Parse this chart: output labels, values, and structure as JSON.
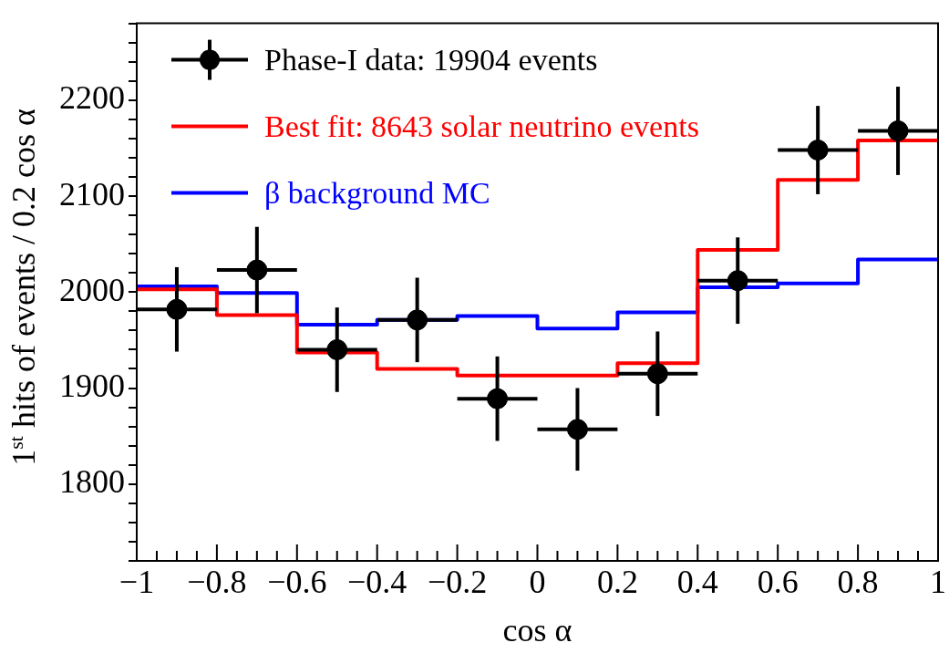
{
  "chart_data": {
    "type": "scatter",
    "xlabel": "cos α",
    "ylabel": "1$^{st}$ hits of events / 0.2 cos α",
    "bins": [
      -1,
      -0.8,
      -0.6,
      -0.4,
      -0.2,
      0,
      0.2,
      0.4,
      0.6,
      0.8,
      1
    ],
    "series": [
      {
        "name": "Phase-I data: 19904 events",
        "type": "scatter",
        "color": "#000000",
        "x": [
          -0.9,
          -0.7,
          -0.5,
          -0.3,
          -0.1,
          0.1,
          0.3,
          0.5,
          0.7,
          0.9
        ],
        "values": [
          1982,
          2023,
          1940,
          1971,
          1889,
          1857,
          1915,
          2012,
          2148,
          2168
        ],
        "errors": [
          44,
          45,
          44,
          44,
          44,
          43,
          44,
          45,
          46,
          46
        ],
        "xerrors": [
          0.1,
          0.1,
          0.1,
          0.1,
          0.1,
          0.1,
          0.1,
          0.1,
          0.1,
          0.1
        ]
      },
      {
        "name": "Best fit: 8643 solar neutrino events",
        "type": "histogram",
        "color": "#ff0000",
        "values": [
          2003,
          1976,
          1937,
          1920,
          1913,
          1913,
          1926,
          2044,
          2117,
          2158
        ]
      },
      {
        "name": "β background MC",
        "type": "histogram",
        "color": "#0000ff",
        "values": [
          2006,
          1999,
          1966,
          1971,
          1975,
          1962,
          1979,
          2005,
          2009,
          2034
        ]
      }
    ],
    "xlim": [
      -1,
      1
    ],
    "xticks": [
      {
        "value": -1,
        "label": "−1"
      },
      {
        "value": -0.95,
        "label": null
      },
      {
        "value": -0.9,
        "label": null
      },
      {
        "value": -0.85,
        "label": null
      },
      {
        "value": -0.8,
        "label": "−0.8"
      },
      {
        "value": -0.75,
        "label": null
      },
      {
        "value": -0.7,
        "label": null
      },
      {
        "value": -0.65,
        "label": null
      },
      {
        "value": -0.6,
        "label": "−0.6"
      },
      {
        "value": -0.55,
        "label": null
      },
      {
        "value": -0.5,
        "label": null
      },
      {
        "value": -0.45,
        "label": null
      },
      {
        "value": -0.4,
        "label": "−0.4"
      },
      {
        "value": -0.35,
        "label": null
      },
      {
        "value": -0.3,
        "label": null
      },
      {
        "value": -0.25,
        "label": null
      },
      {
        "value": -0.2,
        "label": "−0.2"
      },
      {
        "value": -0.15,
        "label": null
      },
      {
        "value": -0.1,
        "label": null
      },
      {
        "value": -0.05,
        "label": null
      },
      0,
      {
        "value": 0.05,
        "label": null
      },
      {
        "value": 0.1,
        "label": null
      },
      {
        "value": 0.15,
        "label": null
      },
      0.2,
      {
        "value": 0.25,
        "label": null
      },
      {
        "value": 0.3,
        "label": null
      },
      {
        "value": 0.35,
        "label": null
      },
      0.4,
      {
        "value": 0.45,
        "label": null
      },
      {
        "value": 0.5,
        "label": null
      },
      {
        "value": 0.55,
        "label": null
      },
      0.6,
      {
        "value": 0.65,
        "label": null
      },
      {
        "value": 0.7,
        "label": null
      },
      {
        "value": 0.75,
        "label": null
      },
      0.8,
      {
        "value": 0.85,
        "label": null
      },
      {
        "value": 0.9,
        "label": null
      },
      {
        "value": 0.95,
        "label": null
      },
      1
    ],
    "ylim": [
      1720,
      2280
    ],
    "yticks": [
      {
        "value": 1720,
        "label": null
      },
      {
        "value": 1740,
        "label": null
      },
      {
        "value": 1760,
        "label": null
      },
      {
        "value": 1780,
        "label": null
      },
      1800,
      {
        "value": 1820,
        "label": null
      },
      {
        "value": 1840,
        "label": null
      },
      {
        "value": 1860,
        "label": null
      },
      {
        "value": 1880,
        "label": null
      },
      1900,
      {
        "value": 1920,
        "label": null
      },
      {
        "value": 1940,
        "label": null
      },
      {
        "value": 1960,
        "label": null
      },
      {
        "value": 1980,
        "label": null
      },
      2000,
      {
        "value": 2020,
        "label": null
      },
      {
        "value": 2040,
        "label": null
      },
      {
        "value": 2060,
        "label": null
      },
      {
        "value": 2080,
        "label": null
      },
      2100,
      {
        "value": 2120,
        "label": null
      },
      {
        "value": 2140,
        "label": null
      },
      {
        "value": 2160,
        "label": null
      },
      {
        "value": 2180,
        "label": null
      },
      2200,
      {
        "value": 2220,
        "label": null
      },
      {
        "value": 2240,
        "label": null
      },
      {
        "value": 2260,
        "label": null
      },
      {
        "value": 2280,
        "label": null
      }
    ],
    "marker": "circle",
    "legend": "top left",
    "grid": false
  }
}
